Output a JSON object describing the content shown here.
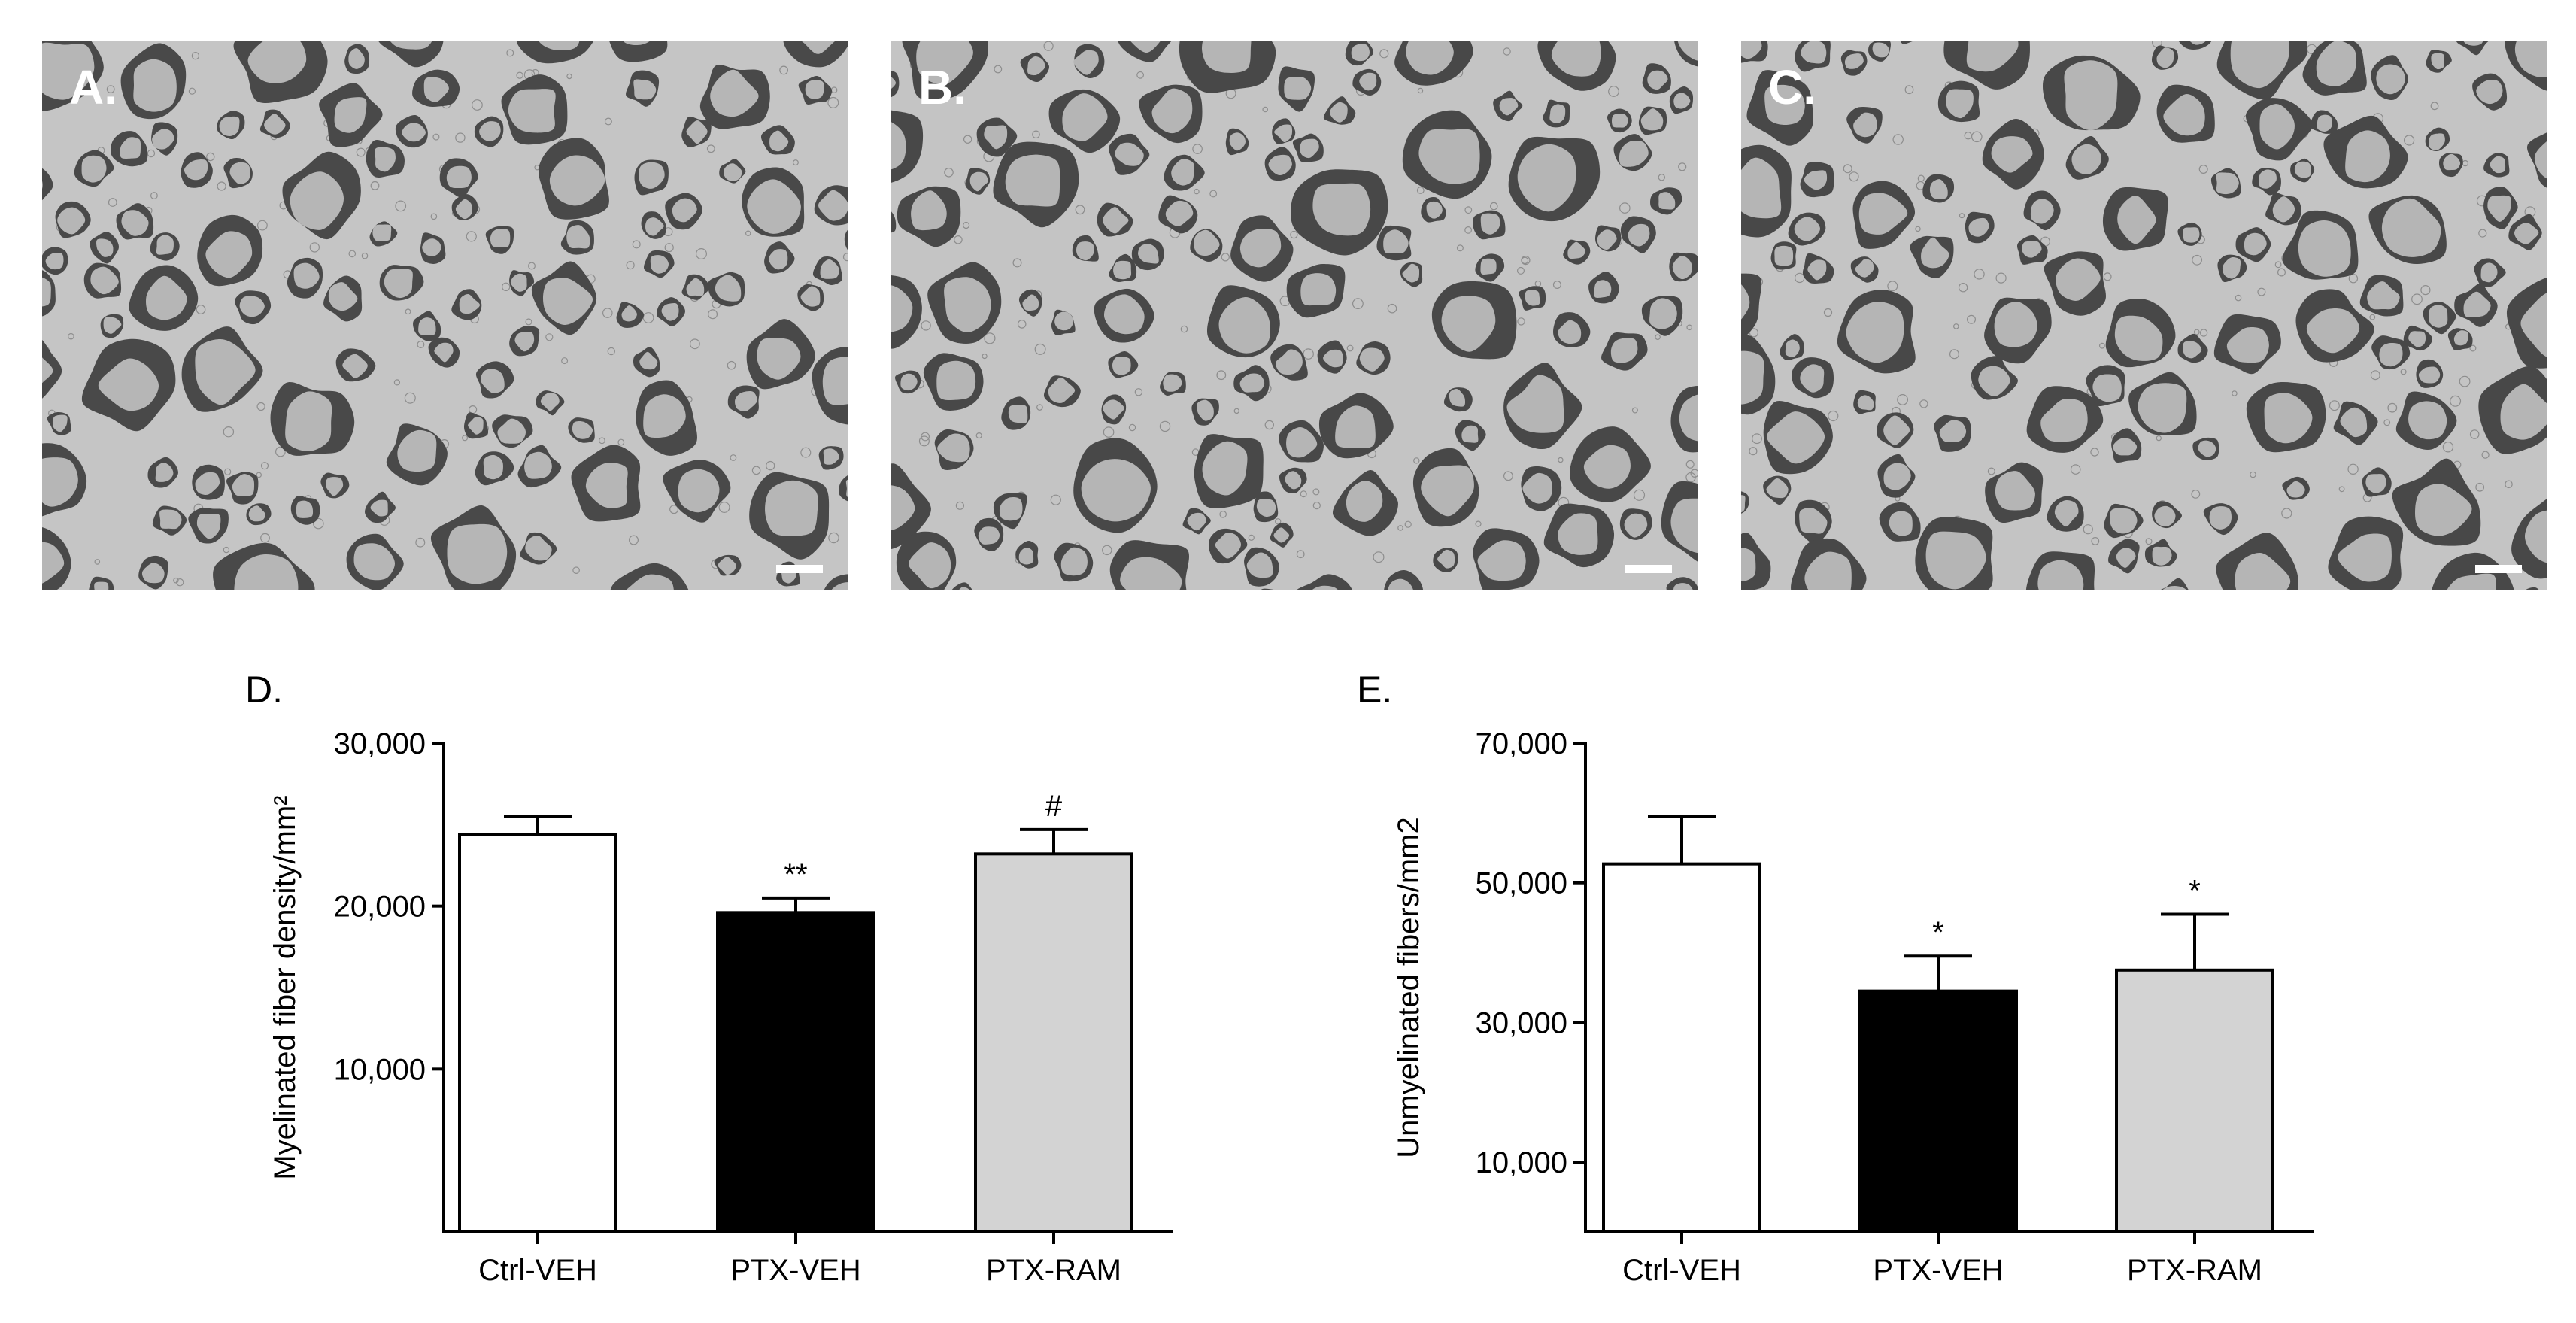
{
  "images": [
    {
      "label": "A.",
      "fill": "#a9a9a9"
    },
    {
      "label": "B.",
      "fill": "#a6a6a6"
    },
    {
      "label": "C.",
      "fill": "#a8a8a8"
    }
  ],
  "colors": {
    "myelin": "#3c3c3c",
    "axon": "#b8b8b8",
    "background_tissue": "#c9c9c9"
  },
  "chart_data": [
    {
      "label": "D.",
      "type": "bar",
      "ylabel": "Myelinated fiber density/mm²",
      "ylim": [
        0,
        30000
      ],
      "yticks": [
        10000,
        20000,
        30000
      ],
      "ytick_labels": [
        "10,000",
        "20,000",
        "30,000"
      ],
      "categories": [
        "Ctrl-VEH",
        "PTX-VEH",
        "PTX-RAM"
      ],
      "values": [
        24400,
        19600,
        23200
      ],
      "errors": [
        1100,
        900,
        1500
      ],
      "bar_colors": [
        "#ffffff",
        "#000000",
        "#d3d3d3"
      ],
      "annotations": [
        "",
        "**",
        "#"
      ],
      "grid": false,
      "legend": "none"
    },
    {
      "label": "E.",
      "type": "bar",
      "ylabel": "Unmyelinated fibers/mm2",
      "ylim": [
        0,
        70000
      ],
      "yticks": [
        10000,
        30000,
        50000,
        70000
      ],
      "ytick_labels": [
        "10,000",
        "30,000",
        "50,000",
        "70,000"
      ],
      "categories": [
        "Ctrl-VEH",
        "PTX-VEH",
        "PTX-RAM"
      ],
      "values": [
        52700,
        34500,
        37500
      ],
      "errors": [
        6800,
        5000,
        8000
      ],
      "bar_colors": [
        "#ffffff",
        "#000000",
        "#d3d3d3"
      ],
      "annotations": [
        "",
        "*",
        "*"
      ],
      "grid": false,
      "legend": "none"
    }
  ]
}
